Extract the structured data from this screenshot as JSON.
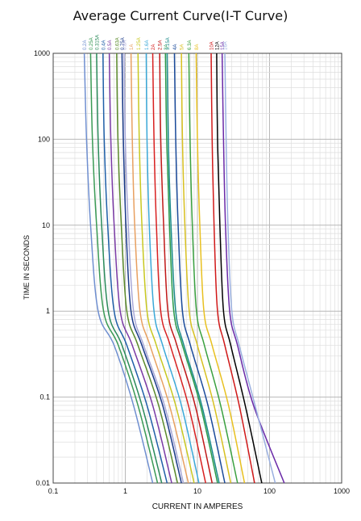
{
  "chart_data": {
    "type": "line",
    "title": "Average Current Curve(I-T Curve)",
    "xlabel": "CURRENT IN AMPERES",
    "ylabel": "TIME IN SECONDS",
    "xscale": "log",
    "yscale": "log",
    "xlim": [
      0.1,
      1000
    ],
    "ylim": [
      0.01,
      1000
    ],
    "xticks": [
      "0.1",
      "1",
      "10",
      "100",
      "1000"
    ],
    "yticks": [
      "0.01",
      "0.1",
      "1",
      "10",
      "100",
      "1000"
    ],
    "grid": true,
    "legend": "top, rotated labels above curves",
    "series": [
      {
        "name": "0.2A",
        "color": "#6f8fd0",
        "x": [
          0.27,
          0.29,
          0.33,
          0.42,
          0.7,
          1.3,
          2.4
        ],
        "y": [
          1000,
          100,
          10,
          1,
          0.4,
          0.08,
          0.01
        ]
      },
      {
        "name": "0.25A",
        "color": "#3a9a55",
        "x": [
          0.33,
          0.35,
          0.4,
          0.5,
          0.8,
          1.5,
          2.8
        ],
        "y": [
          1000,
          100,
          10,
          1,
          0.4,
          0.08,
          0.01
        ]
      },
      {
        "name": "0.315A",
        "color": "#2a8a5a",
        "x": [
          0.4,
          0.42,
          0.47,
          0.58,
          0.9,
          1.7,
          3.2
        ],
        "y": [
          1000,
          100,
          10,
          1,
          0.4,
          0.08,
          0.01
        ]
      },
      {
        "name": "0.4A",
        "color": "#1f5fa8",
        "x": [
          0.49,
          0.51,
          0.57,
          0.7,
          1.05,
          2.0,
          3.8
        ],
        "y": [
          1000,
          100,
          10,
          1,
          0.4,
          0.08,
          0.01
        ]
      },
      {
        "name": "0.5A",
        "color": "#7a3aa5",
        "x": [
          0.6,
          0.63,
          0.7,
          0.85,
          1.25,
          2.4,
          4.4
        ],
        "y": [
          1000,
          100,
          10,
          1,
          0.4,
          0.08,
          0.01
        ]
      },
      {
        "name": "0.63A",
        "color": "#5a8a2a",
        "x": [
          0.76,
          0.79,
          0.88,
          1.05,
          1.5,
          2.9,
          5.3
        ],
        "y": [
          1000,
          100,
          10,
          1,
          0.4,
          0.08,
          0.01
        ]
      },
      {
        "name": "0.75A",
        "color": "#1a3a8a",
        "x": [
          0.9,
          0.94,
          1.02,
          1.2,
          1.7,
          3.3,
          6.0
        ],
        "y": [
          1000,
          100,
          10,
          1,
          0.4,
          0.08,
          0.01
        ]
      },
      {
        "name": "0.8A",
        "color": "#a8a8d8",
        "x": [
          0.96,
          1.0,
          1.1,
          1.3,
          1.8,
          3.5,
          6.4
        ],
        "y": [
          1000,
          100,
          10,
          1,
          0.4,
          0.08,
          0.01
        ]
      },
      {
        "name": "1A",
        "color": "#e8a060",
        "x": [
          1.2,
          1.25,
          1.35,
          1.6,
          2.2,
          4.1,
          7.5
        ],
        "y": [
          1000,
          100,
          10,
          1,
          0.4,
          0.08,
          0.01
        ]
      },
      {
        "name": "1.25A",
        "color": "#c8c820",
        "x": [
          1.5,
          1.56,
          1.7,
          2.0,
          2.7,
          5.0,
          9.0
        ],
        "y": [
          1000,
          100,
          10,
          1,
          0.4,
          0.08,
          0.01
        ]
      },
      {
        "name": "1.6A",
        "color": "#3aa8d8",
        "x": [
          1.95,
          2.0,
          2.15,
          2.5,
          3.3,
          6.0,
          10.5
        ],
        "y": [
          1000,
          100,
          10,
          1,
          0.4,
          0.08,
          0.01
        ]
      },
      {
        "name": "2A",
        "color": "#d82020",
        "x": [
          2.4,
          2.5,
          2.7,
          3.1,
          4.2,
          7.5,
          13.0
        ],
        "y": [
          1000,
          100,
          10,
          1,
          0.4,
          0.08,
          0.01
        ]
      },
      {
        "name": "2.5A",
        "color": "#c01818",
        "x": [
          3.0,
          3.1,
          3.4,
          3.9,
          5.2,
          9.3,
          16.0
        ],
        "y": [
          1000,
          100,
          10,
          1,
          0.4,
          0.08,
          0.01
        ]
      },
      {
        "name": "3A",
        "color": "#2a9a4a",
        "x": [
          3.6,
          3.75,
          4.1,
          4.7,
          6.2,
          11.0,
          19.0
        ],
        "y": [
          1000,
          100,
          10,
          1,
          0.4,
          0.08,
          0.01
        ]
      },
      {
        "name": "3.15A",
        "color": "#1a8a8a",
        "x": [
          3.8,
          3.95,
          4.3,
          5.0,
          6.5,
          11.5,
          20.0
        ],
        "y": [
          1000,
          100,
          10,
          1,
          0.4,
          0.08,
          0.01
        ]
      },
      {
        "name": "4A",
        "color": "#1a4a9a",
        "x": [
          4.8,
          5.0,
          5.4,
          6.2,
          8.0,
          14.0,
          24.0
        ],
        "y": [
          1000,
          100,
          10,
          1,
          0.4,
          0.08,
          0.01
        ]
      },
      {
        "name": "5A",
        "color": "#d8c020",
        "x": [
          6.0,
          6.2,
          6.7,
          7.7,
          10.0,
          17.0,
          29.0
        ],
        "y": [
          1000,
          100,
          10,
          1,
          0.4,
          0.08,
          0.01
        ]
      },
      {
        "name": "6.3A",
        "color": "#3aa040",
        "x": [
          7.6,
          7.9,
          8.5,
          9.7,
          12.5,
          21.0,
          36.0
        ],
        "y": [
          1000,
          100,
          10,
          1,
          0.4,
          0.08,
          0.01
        ]
      },
      {
        "name": "8A",
        "color": "#e8c020",
        "x": [
          9.6,
          10.0,
          10.8,
          12.3,
          16.0,
          27.0,
          45.0
        ],
        "y": [
          1000,
          100,
          10,
          1,
          0.4,
          0.08,
          0.01
        ]
      },
      {
        "name": "10A",
        "color": "#d01818",
        "x": [
          15.5,
          16.0,
          17.0,
          19.0,
          24.0,
          38.0,
          62.0
        ],
        "y": [
          1000,
          100,
          10,
          1,
          0.4,
          0.08,
          0.01
        ]
      },
      {
        "name": "12A",
        "color": "#000000",
        "x": [
          18.5,
          19.0,
          20.5,
          23.0,
          29.0,
          46.0,
          78.0
        ],
        "y": [
          1000,
          100,
          10,
          1,
          0.4,
          0.08,
          0.01
        ]
      },
      {
        "name": "15A",
        "color": "#6a2aa8",
        "x": [
          22.0,
          23.0,
          24.5,
          28.0,
          36.0,
          60.0,
          160.0
        ],
        "y": [
          1000,
          100,
          10,
          1,
          0.4,
          0.08,
          0.01
        ]
      },
      {
        "name": "16A",
        "color": "#9ab0e0",
        "x": [
          24.0,
          25.0,
          26.5,
          30.0,
          38.0,
          63.0,
          120.0
        ],
        "y": [
          1000,
          100,
          10,
          1,
          0.4,
          0.08,
          0.01
        ]
      }
    ]
  }
}
